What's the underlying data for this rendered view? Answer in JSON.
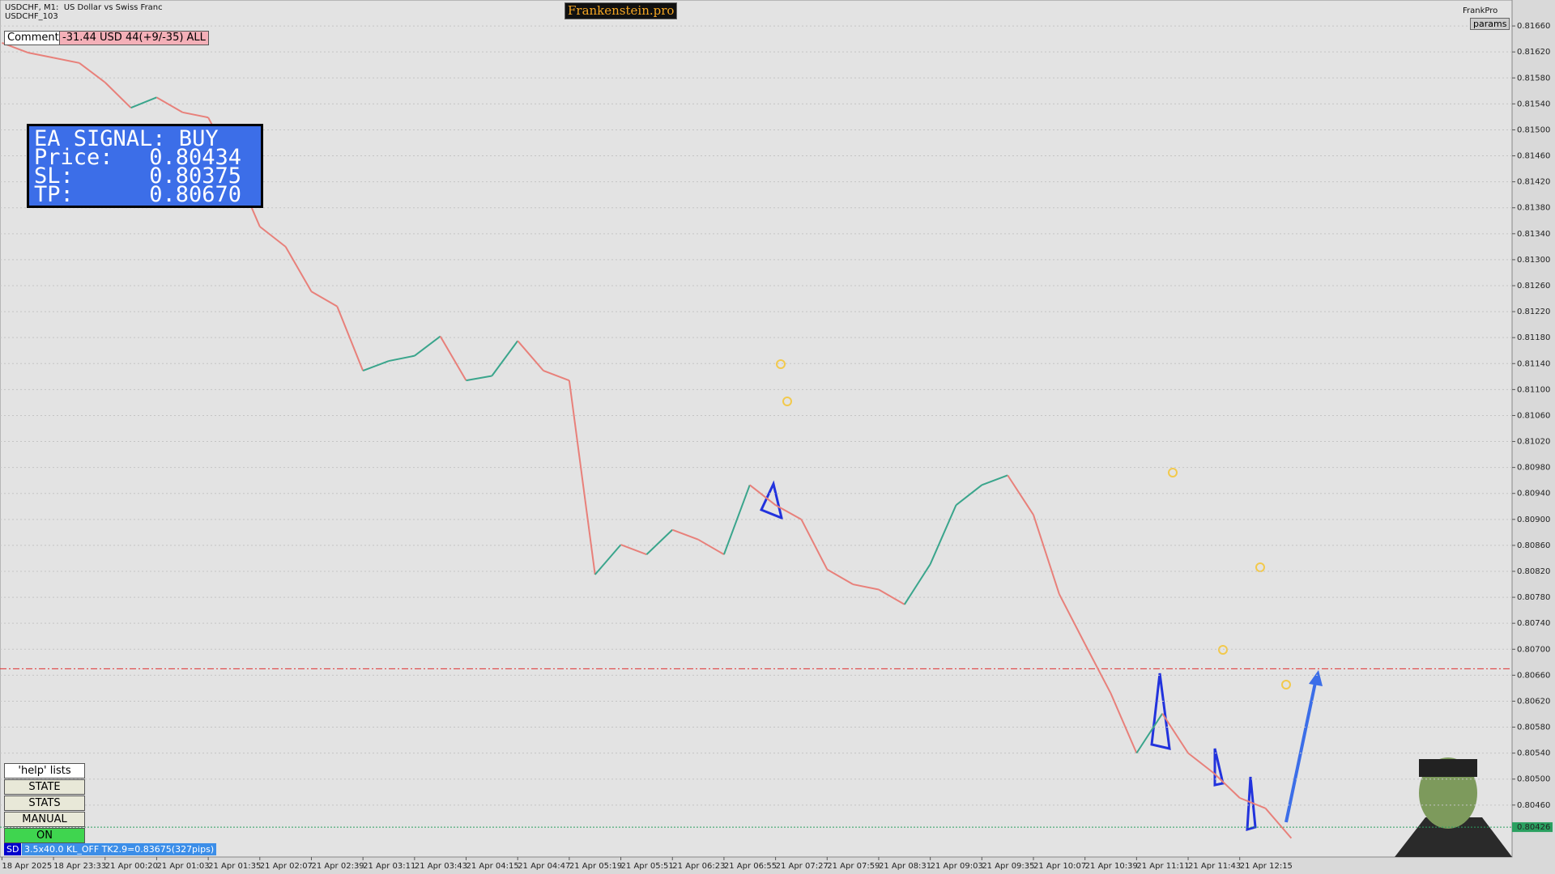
{
  "window": {
    "symbol": "USDCHF, M1:  US Dollar vs Swiss Franc",
    "account": "USDCHF_103",
    "brand": "Frankenstein.pro",
    "expert": "FrankPro",
    "params": "params",
    "comment_label": "Comment",
    "comment_value": "-31.44 USD 44(+9/-35) ALL",
    "buttons": [
      "'help' lists cmds",
      "STATE",
      "STATS",
      "MANUAL",
      "ON"
    ],
    "status_tag": "SD",
    "status_text": "3.5x40.0 KL_OFF TK2.9=0.83675(327pips)"
  },
  "chart_data": {
    "type": "line",
    "grid": true,
    "categories": [
      "18 Apr 2025",
      null,
      "18 Apr 23:33",
      null,
      "21 Apr 00:20",
      null,
      "21 Apr 01:03",
      null,
      "21 Apr 01:35",
      null,
      "21 Apr 02:07",
      null,
      "21 Apr 02:39",
      null,
      "21 Apr 03:11",
      null,
      "21 Apr 03:43",
      null,
      "21 Apr 04:15",
      null,
      "21 Apr 04:47",
      null,
      "21 Apr 05:19",
      null,
      "21 Apr 05:51",
      null,
      "21 Apr 06:23",
      null,
      "21 Apr 06:55",
      null,
      "21 Apr 07:27",
      null,
      "21 Apr 07:59",
      null,
      "21 Apr 08:31",
      null,
      "21 Apr 09:03",
      null,
      "21 Apr 09:35",
      null,
      "21 Apr 10:07",
      null,
      "21 Apr 10:39",
      null,
      "21 Apr 11:11",
      null,
      "21 Apr 11:43",
      null,
      "21 Apr 12:15",
      null,
      null
    ],
    "values": [
      0.81634,
      0.81619,
      0.81611,
      0.81603,
      0.81573,
      0.81534,
      0.8155,
      0.81527,
      0.81519,
      0.81443,
      0.81351,
      0.8132,
      0.81251,
      0.81228,
      0.81129,
      0.81144,
      0.81152,
      0.81182,
      0.81114,
      0.81121,
      0.81175,
      0.81129,
      0.81114,
      0.80815,
      0.80861,
      0.80846,
      0.80884,
      0.80869,
      0.80846,
      0.80953,
      0.80922,
      0.809,
      0.80823,
      0.808,
      0.80792,
      0.80769,
      0.80831,
      0.80922,
      0.80953,
      0.80968,
      0.80907,
      0.80785,
      0.80708,
      0.80632,
      0.8054,
      0.80601,
      0.8054,
      0.80509,
      0.80471,
      0.80455,
      0.80409
    ],
    "up_color": "#3aa58c",
    "down_color": "#e8807a",
    "ylim": [
      0.8038,
      0.817
    ],
    "yticks": [
      {
        "value": 0.8166,
        "label": "0.81660"
      },
      {
        "value": 0.8162,
        "label": "0.81620"
      },
      {
        "value": 0.8158,
        "label": "0.81580"
      },
      {
        "value": 0.8154,
        "label": "0.81540"
      },
      {
        "value": 0.815,
        "label": "0.81500"
      },
      {
        "value": 0.8146,
        "label": "0.81460"
      },
      {
        "value": 0.8142,
        "label": "0.81420"
      },
      {
        "value": 0.8138,
        "label": "0.81380"
      },
      {
        "value": 0.8134,
        "label": "0.81340"
      },
      {
        "value": 0.813,
        "label": "0.81300"
      },
      {
        "value": 0.8126,
        "label": "0.81260"
      },
      {
        "value": 0.8122,
        "label": "0.81220"
      },
      {
        "value": 0.8118,
        "label": "0.81180"
      },
      {
        "value": 0.8114,
        "label": "0.81140"
      },
      {
        "value": 0.811,
        "label": "0.81100"
      },
      {
        "value": 0.8106,
        "label": "0.81060"
      },
      {
        "value": 0.8102,
        "label": "0.81020"
      },
      {
        "value": 0.8098,
        "label": "0.80980"
      },
      {
        "value": 0.8094,
        "label": "0.80940"
      },
      {
        "value": 0.809,
        "label": "0.80900"
      },
      {
        "value": 0.8086,
        "label": "0.80860"
      },
      {
        "value": 0.8082,
        "label": "0.80820"
      },
      {
        "value": 0.8078,
        "label": "0.80780"
      },
      {
        "value": 0.8074,
        "label": "0.80740"
      },
      {
        "value": 0.807,
        "label": "0.80700"
      },
      {
        "value": 0.8066,
        "label": "0.80660"
      },
      {
        "value": 0.8062,
        "label": "0.80620"
      },
      {
        "value": 0.8058,
        "label": "0.80580"
      },
      {
        "value": 0.8054,
        "label": "0.80540"
      },
      {
        "value": 0.805,
        "label": "0.80500"
      },
      {
        "value": 0.8046,
        "label": "0.80460"
      }
    ],
    "current_price": {
      "value": 0.80426,
      "label": "0.80426"
    },
    "signal": {
      "title": "EA SIGNAL: BUY",
      "rows": [
        {
          "label": "Price:",
          "value": {
            "value": 0.80434,
            "label": "0.80434"
          }
        },
        {
          "label": "SL:",
          "value": {
            "value": 0.80375,
            "label": "0.80375"
          }
        },
        {
          "label": "TP:",
          "value": {
            "value": 0.8067,
            "label": "0.80670"
          }
        }
      ]
    }
  }
}
